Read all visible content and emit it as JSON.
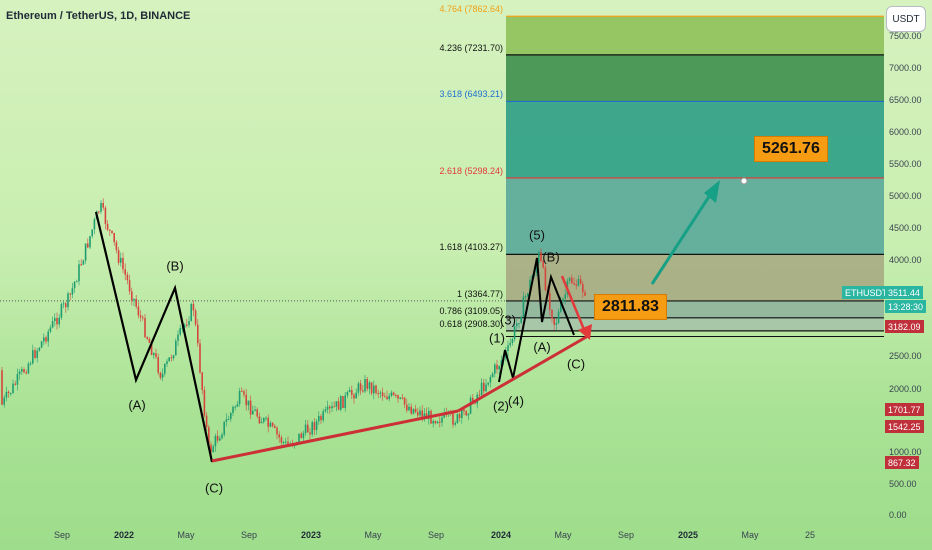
{
  "header": {
    "title": "Ethereum / TetherUS, 1D, BINANCE",
    "currency_button": "USDT"
  },
  "colors": {
    "fib_blue": "#1f6fd1",
    "fib_red": "#e53935",
    "fib_orange": "#f2a218",
    "trend_red": "#cc2f36",
    "projection": "#16a085",
    "callout": "#f59c12",
    "price_badge_teal": "#2bb6a1",
    "price_badge_red": "#c0303a"
  },
  "chart_data": {
    "type": "candlestick",
    "title": "Ethereum / TetherUS, 1D, BINANCE",
    "y_axis": {
      "scale": "log",
      "unit": "USDT",
      "ticks": [
        "7500.00",
        "7000.00",
        "6500.00",
        "6000.00",
        "5500.00",
        "5000.00",
        "4500.00",
        "4000.00",
        "2500.00",
        "2000.00",
        "1000.00",
        "500.00",
        "0.00"
      ]
    },
    "x_axis": {
      "ticks": [
        {
          "label": "Sep",
          "bold": false
        },
        {
          "label": "2022",
          "bold": true
        },
        {
          "label": "May",
          "bold": false
        },
        {
          "label": "Sep",
          "bold": false
        },
        {
          "label": "2023",
          "bold": true
        },
        {
          "label": "May",
          "bold": false
        },
        {
          "label": "Sep",
          "bold": false
        },
        {
          "label": "2024",
          "bold": true
        },
        {
          "label": "May",
          "bold": false
        },
        {
          "label": "Sep",
          "bold": false
        },
        {
          "label": "2025",
          "bold": true
        },
        {
          "label": "May",
          "bold": false
        },
        {
          "label": "25",
          "bold": false
        }
      ]
    },
    "price_path": [
      {
        "date": "2021-07",
        "price": 2300
      },
      {
        "date": "2021-09",
        "price": 3400
      },
      {
        "date": "2021-11",
        "price": 4860
      },
      {
        "date": "2022-01",
        "price": 3500
      },
      {
        "date": "2022-03",
        "price": 2200
      },
      {
        "date": "2022-05",
        "price": 3300
      },
      {
        "date": "2022-06",
        "price": 1000
      },
      {
        "date": "2022-08",
        "price": 1900
      },
      {
        "date": "2022-11",
        "price": 1100
      },
      {
        "date": "2023-04",
        "price": 2100
      },
      {
        "date": "2023-08",
        "price": 1600
      },
      {
        "date": "2023-10",
        "price": 1550
      },
      {
        "date": "2024-01",
        "price": 2600
      },
      {
        "date": "2024-03",
        "price": 4090
      },
      {
        "date": "2024-04",
        "price": 3000
      },
      {
        "date": "2024-05",
        "price": 3700
      },
      {
        "date": "2024-06",
        "price": 3511
      }
    ],
    "fib_levels": [
      {
        "label": "4.764 (7862.64)",
        "color": "fib_orange",
        "value": 7862.64
      },
      {
        "label": "4.236 (7231.70)",
        "color": "dark",
        "value": 7231.7
      },
      {
        "label": "3.618 (6493.21)",
        "color": "fib_blue",
        "value": 6493.21
      },
      {
        "label": "2.618 (5298.24)",
        "color": "fib_red",
        "value": 5298.24
      },
      {
        "label": "1.618 (4103.27)",
        "color": "dark",
        "value": 4103.27
      },
      {
        "label": "1 (3364.77)",
        "color": "dark",
        "value": 3364.77
      },
      {
        "label": "0.786 (3109.05)",
        "color": "dark",
        "value": 3109.05
      },
      {
        "label": "0.618 (2908.30)",
        "color": "dark",
        "value": 2908.3
      }
    ],
    "wave_labels": [
      "(A)",
      "(B)",
      "(C)",
      "(1)",
      "(2)",
      "(3)",
      "(4)",
      "(5)",
      "(A)",
      "(B)",
      "(C)"
    ],
    "annotations": {
      "target": "5261.76",
      "support": "2811.83"
    },
    "price_badges": {
      "symbol": "ETHUSDT",
      "current": "3511.44",
      "countdown": "13:28:30",
      "level1": "3182.09",
      "level2": "1701.77",
      "level3": "1542.25",
      "level4": "867.32"
    }
  }
}
